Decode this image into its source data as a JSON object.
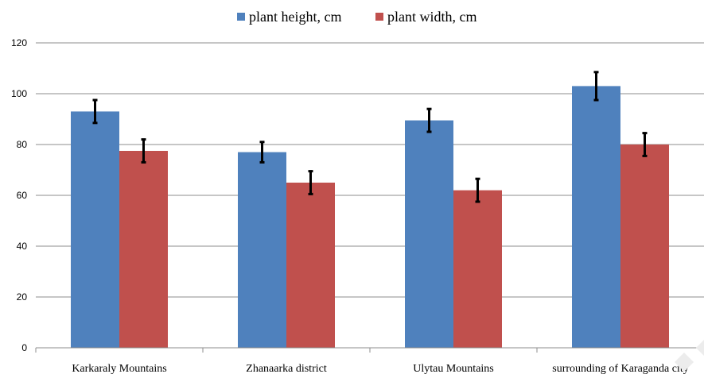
{
  "chart_data": {
    "type": "bar",
    "title": "",
    "xlabel": "",
    "ylabel": "",
    "ylim": [
      0,
      120
    ],
    "yticks": [
      0,
      20,
      40,
      60,
      80,
      100,
      120
    ],
    "grid": true,
    "legend_position": "top-center",
    "categories": [
      "Karkaraly Mountains",
      "Zhanaarka district",
      "Ulytau Mountains",
      "surrounding of Karaganda city"
    ],
    "series": [
      {
        "name": "plant height, cm",
        "color": "#4f81bd",
        "values": [
          93,
          77,
          89.5,
          103
        ],
        "errors": [
          4.5,
          4,
          4.5,
          5.5
        ]
      },
      {
        "name": "plant width, cm",
        "color": "#c0504d",
        "values": [
          77.5,
          65,
          62,
          80
        ],
        "errors": [
          4.5,
          4.5,
          4.5,
          4.5
        ]
      }
    ]
  }
}
